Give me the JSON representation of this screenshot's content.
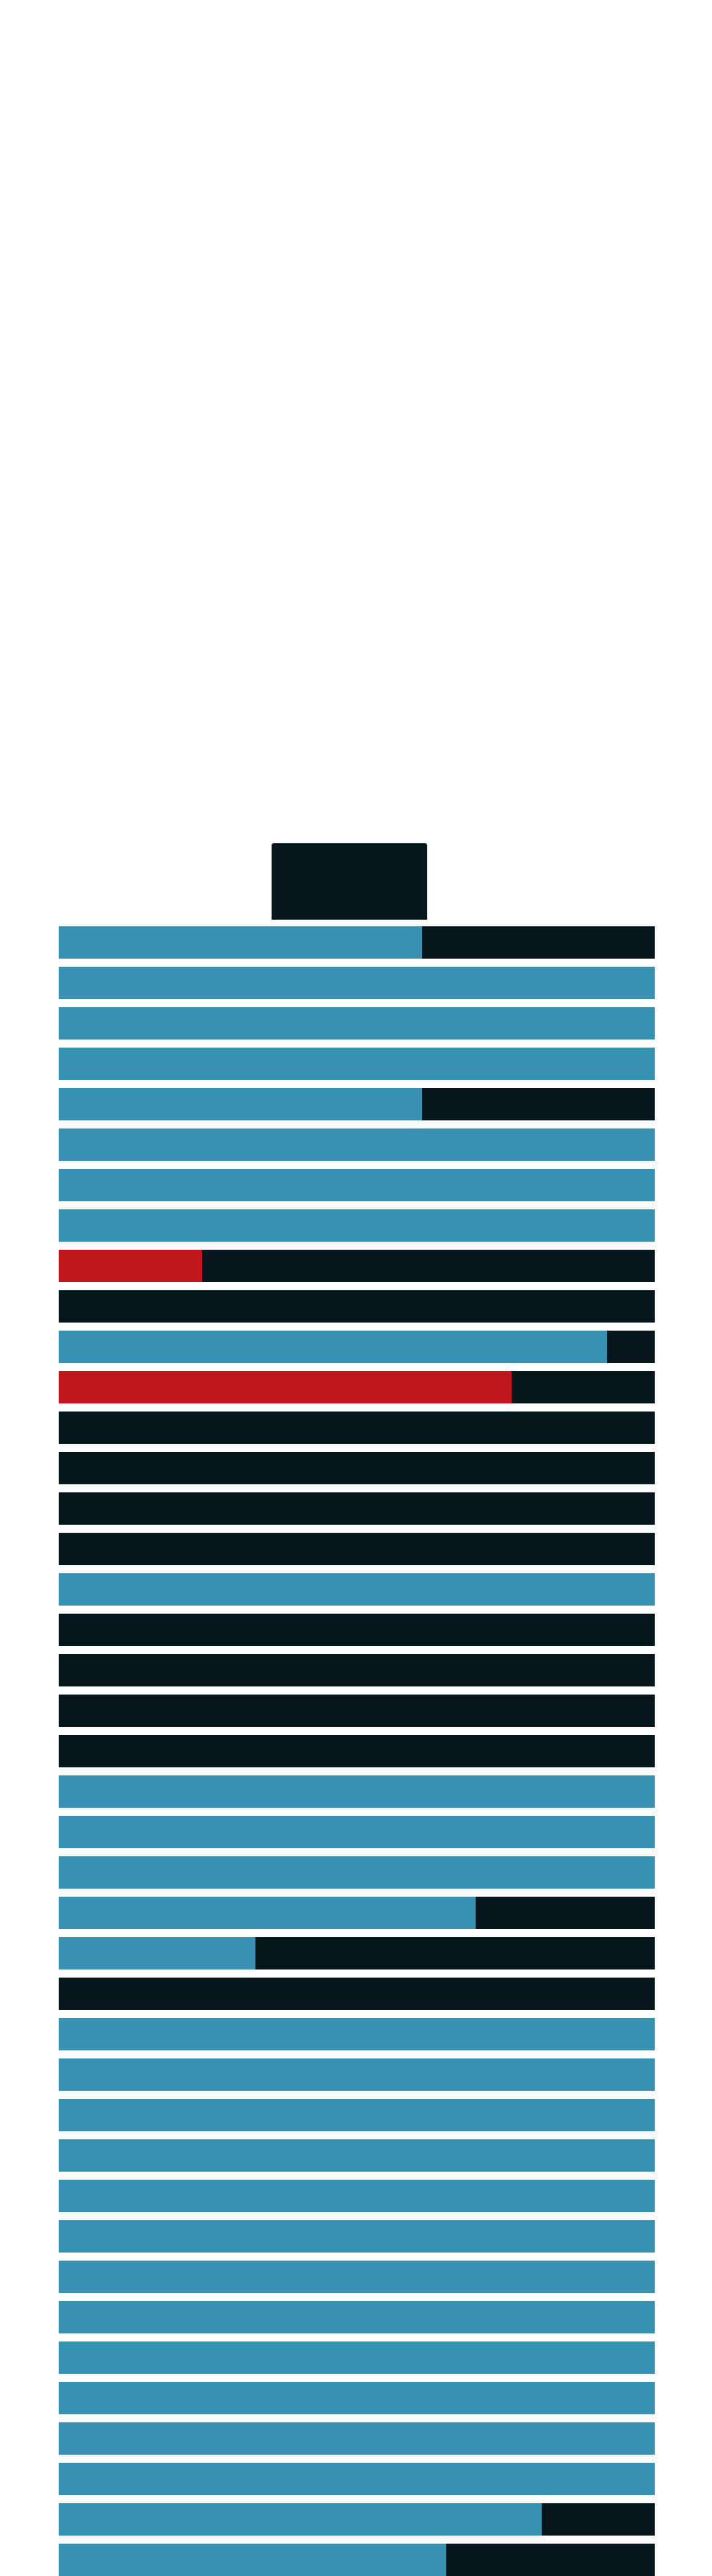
{
  "colors": {
    "background": "#fdfdfd",
    "charged": "#3891b3",
    "critical": "#be171e",
    "empty": "#07151c",
    "cap": "#07151c"
  },
  "cells": [
    {
      "fill": 0.61,
      "color": "charged"
    },
    {
      "fill": 1.0,
      "color": "charged"
    },
    {
      "fill": 1.0,
      "color": "charged"
    },
    {
      "fill": 1.0,
      "color": "charged"
    },
    {
      "fill": 0.61,
      "color": "charged"
    },
    {
      "fill": 1.0,
      "color": "charged"
    },
    {
      "fill": 1.0,
      "color": "charged"
    },
    {
      "fill": 1.0,
      "color": "charged"
    },
    {
      "fill": 0.24,
      "color": "critical"
    },
    {
      "fill": 0.0,
      "color": "charged"
    },
    {
      "fill": 0.92,
      "color": "charged"
    },
    {
      "fill": 0.76,
      "color": "critical"
    },
    {
      "fill": 0.0,
      "color": "charged"
    },
    {
      "fill": 0.0,
      "color": "charged"
    },
    {
      "fill": 0.0,
      "color": "charged"
    },
    {
      "fill": 0.0,
      "color": "charged"
    },
    {
      "fill": 1.0,
      "color": "charged"
    },
    {
      "fill": 0.0,
      "color": "charged"
    },
    {
      "fill": 0.0,
      "color": "charged"
    },
    {
      "fill": 0.0,
      "color": "charged"
    },
    {
      "fill": 0.0,
      "color": "charged"
    },
    {
      "fill": 1.0,
      "color": "charged"
    },
    {
      "fill": 1.0,
      "color": "charged"
    },
    {
      "fill": 1.0,
      "color": "charged"
    },
    {
      "fill": 0.7,
      "color": "charged"
    },
    {
      "fill": 0.33,
      "color": "charged"
    },
    {
      "fill": 0.0,
      "color": "charged"
    },
    {
      "fill": 1.0,
      "color": "charged"
    },
    {
      "fill": 1.0,
      "color": "charged"
    },
    {
      "fill": 1.0,
      "color": "charged"
    },
    {
      "fill": 1.0,
      "color": "charged"
    },
    {
      "fill": 1.0,
      "color": "charged"
    },
    {
      "fill": 1.0,
      "color": "charged"
    },
    {
      "fill": 1.0,
      "color": "charged"
    },
    {
      "fill": 1.0,
      "color": "charged"
    },
    {
      "fill": 1.0,
      "color": "charged"
    },
    {
      "fill": 1.0,
      "color": "charged"
    },
    {
      "fill": 1.0,
      "color": "charged"
    },
    {
      "fill": 1.0,
      "color": "charged"
    },
    {
      "fill": 0.81,
      "color": "charged"
    },
    {
      "fill": 0.65,
      "color": "charged"
    }
  ]
}
